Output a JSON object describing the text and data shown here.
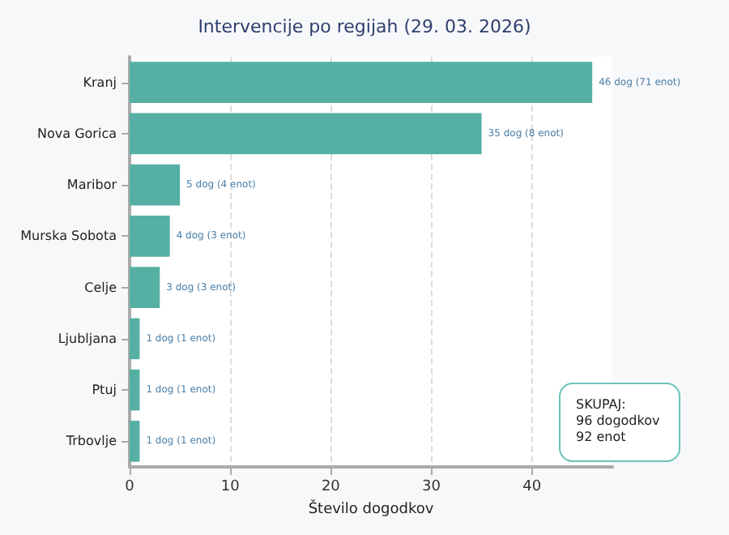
{
  "chart_data": {
    "type": "bar",
    "orientation": "horizontal",
    "title": "Intervencije po regijah (29. 03. 2026)",
    "xlabel": "Število dogodkov",
    "categories": [
      "Kranj",
      "Nova Gorica",
      "Maribor",
      "Murska Sobota",
      "Celje",
      "Ljubljana",
      "Ptuj",
      "Trbovlje"
    ],
    "values": [
      46,
      35,
      5,
      4,
      3,
      1,
      1,
      1
    ],
    "value_labels": [
      "46 dog (71 enot)",
      "35 dog (8 enot)",
      "5 dog (4 enot)",
      "4 dog (3 enot)",
      "3 dog (3 enot)",
      "1 dog (1 enot)",
      "1 dog (1 enot)",
      "1 dog (1 enot)"
    ],
    "color": "#55b0a3",
    "xlim": [
      0,
      48
    ],
    "xticks": [
      0,
      10,
      20,
      30,
      40
    ],
    "grid": "x",
    "annotations": [
      "SKUPAJ:\n96 dogodkov\n92 enot"
    ]
  }
}
